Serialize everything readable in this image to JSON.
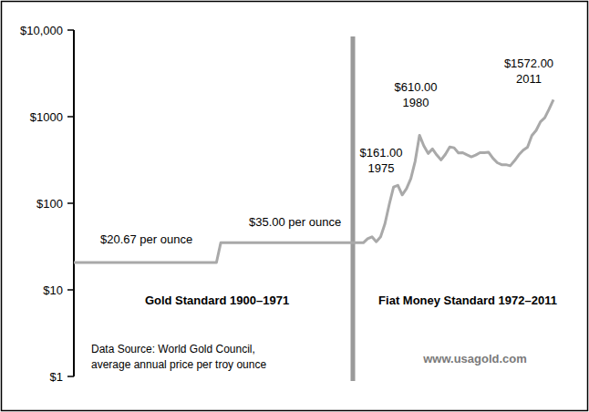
{
  "chart_data": {
    "type": "line",
    "log": "y",
    "tick_labels": "y",
    "grid": false,
    "color": "#a9a9a9",
    "xlim": [
      1900,
      2011
    ],
    "ylim": [
      1,
      10000
    ],
    "yticks": [
      {
        "value": 1,
        "label": "$1"
      },
      {
        "value": 10,
        "label": "$10"
      },
      {
        "value": 100,
        "label": "$100"
      },
      {
        "value": 1000,
        "label": "$1000"
      },
      {
        "value": 10000,
        "label": "$10,000"
      }
    ],
    "x": [
      1900,
      1933,
      1934,
      1967,
      1968,
      1969,
      1970,
      1971,
      1972,
      1973,
      1974,
      1975,
      1976,
      1977,
      1978,
      1979,
      1980,
      1981,
      1982,
      1983,
      1984,
      1985,
      1986,
      1987,
      1988,
      1989,
      1990,
      1991,
      1992,
      1993,
      1994,
      1995,
      1996,
      1997,
      1998,
      1999,
      2000,
      2001,
      2002,
      2003,
      2004,
      2005,
      2006,
      2007,
      2008,
      2009,
      2010,
      2011
    ],
    "values": [
      20.67,
      20.67,
      35,
      35,
      39,
      41,
      36,
      41,
      58,
      97,
      154,
      161,
      125,
      148,
      193,
      306,
      610,
      460,
      376,
      424,
      361,
      317,
      368,
      447,
      437,
      381,
      384,
      362,
      344,
      360,
      384,
      384,
      388,
      331,
      294,
      279,
      279,
      271,
      310,
      363,
      410,
      445,
      604,
      695,
      872,
      972,
      1225,
      1572
    ],
    "annotations": [
      [
        "$20.67 per ounce"
      ],
      [
        "$35.00 per ounce"
      ],
      [
        "$161.00",
        "1975"
      ],
      [
        "$610.00",
        "1980"
      ],
      [
        "$1572.00",
        "2011"
      ]
    ],
    "periods": [
      "Gold Standard 1900–1971",
      "Fiat Money Standard 1972–2011"
    ],
    "source": [
      "Data Source: World Gold Council,",
      "average annual price per troy ounce"
    ],
    "watermark": "www.usagold.com"
  }
}
